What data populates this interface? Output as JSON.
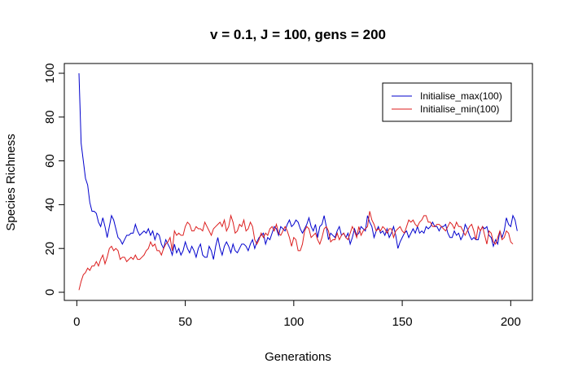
{
  "chart_data": {
    "type": "line",
    "title": "v = 0.1, J = 100, gens = 200",
    "xlabel": "Generations",
    "ylabel": "Species Richness",
    "xlim": [
      1,
      201
    ],
    "ylim": [
      0,
      100
    ],
    "x_ticks": [
      0,
      50,
      100,
      150,
      200
    ],
    "y_ticks": [
      0,
      20,
      40,
      60,
      80,
      100
    ],
    "grid": false,
    "legend_position": "top-right",
    "series": [
      {
        "name": "Initialise_max(100)",
        "color": "#0000cd",
        "x_start": 1,
        "values": [
          100,
          68,
          60,
          52,
          49,
          41,
          37,
          37,
          36,
          32,
          30,
          34,
          30,
          25,
          30,
          35,
          33,
          29,
          25,
          24,
          22,
          24,
          26,
          26,
          27,
          27,
          31,
          28,
          26,
          27,
          28,
          27,
          29,
          26,
          28,
          24,
          27,
          26,
          22,
          20,
          24,
          22,
          20,
          17,
          22,
          18,
          20,
          17,
          19,
          23,
          20,
          18,
          21,
          19,
          16,
          20,
          22,
          17,
          16,
          16,
          21,
          19,
          15,
          21,
          25,
          20,
          17,
          21,
          23,
          21,
          18,
          22,
          19,
          18,
          20,
          22,
          22,
          21,
          19,
          22,
          24,
          20,
          23,
          25,
          26,
          27,
          22,
          25,
          24,
          27,
          30,
          29,
          26,
          30,
          29,
          28,
          31,
          33,
          30,
          31,
          33,
          32,
          29,
          27,
          29,
          31,
          34,
          30,
          28,
          31,
          25,
          30,
          31,
          35,
          30,
          24,
          27,
          26,
          25,
          28,
          30,
          26,
          27,
          25,
          27,
          22,
          25,
          29,
          26,
          27,
          30,
          29,
          28,
          35,
          32,
          30,
          25,
          28,
          30,
          27,
          28,
          26,
          29,
          25,
          27,
          30,
          26,
          20,
          23,
          25,
          27,
          28,
          25,
          27,
          29,
          27,
          30,
          27,
          28,
          27,
          30,
          29,
          30,
          32,
          30,
          30,
          28,
          30,
          30,
          31,
          27,
          25,
          25,
          28,
          26,
          27,
          24,
          26,
          31,
          29,
          26,
          24,
          25,
          24,
          24,
          28,
          30,
          29,
          30,
          26,
          25,
          21,
          24,
          22,
          28,
          25,
          28,
          34,
          31,
          30,
          35,
          33,
          28
        ]
      },
      {
        "name": "Initialise_min(100)",
        "color": "#dc1e1e",
        "x_start": 1,
        "values": [
          1,
          5,
          8,
          9,
          11,
          10,
          12,
          12,
          14,
          12,
          15,
          17,
          13,
          16,
          20,
          21,
          19,
          20,
          19,
          15,
          16,
          16,
          14,
          15,
          16,
          15,
          17,
          15,
          15,
          16,
          17,
          19,
          20,
          23,
          21,
          22,
          19,
          19,
          17,
          20,
          22,
          23,
          25,
          19,
          28,
          26,
          27,
          26,
          26,
          30,
          32,
          31,
          28,
          28,
          30,
          29,
          29,
          28,
          32,
          30,
          28,
          26,
          29,
          30,
          31,
          32,
          30,
          33,
          28,
          30,
          35,
          32,
          27,
          28,
          31,
          30,
          33,
          28,
          29,
          32,
          30,
          24,
          22,
          24,
          27,
          25,
          27,
          26,
          29,
          30,
          28,
          31,
          27,
          26,
          28,
          30,
          28,
          25,
          21,
          25,
          24,
          19,
          19,
          22,
          28,
          30,
          29,
          25,
          26,
          27,
          24,
          22,
          25,
          29,
          30,
          28,
          23,
          24,
          24,
          27,
          24,
          26,
          27,
          25,
          24,
          27,
          30,
          28,
          25,
          30,
          26,
          28,
          29,
          30,
          37,
          33,
          31,
          28,
          29,
          28,
          30,
          29,
          27,
          29,
          29,
          25,
          28,
          29,
          30,
          28,
          27,
          30,
          33,
          32,
          33,
          31,
          30,
          32,
          33,
          35,
          35,
          32,
          32,
          30,
          30,
          31,
          31,
          30,
          29,
          28,
          30,
          32,
          31,
          29,
          32,
          30,
          30,
          28,
          26,
          28,
          30,
          31,
          28,
          24,
          30,
          28,
          30,
          26,
          22,
          28,
          27,
          23,
          22,
          25,
          28,
          24,
          25,
          28,
          27,
          23,
          22
        ]
      }
    ]
  }
}
